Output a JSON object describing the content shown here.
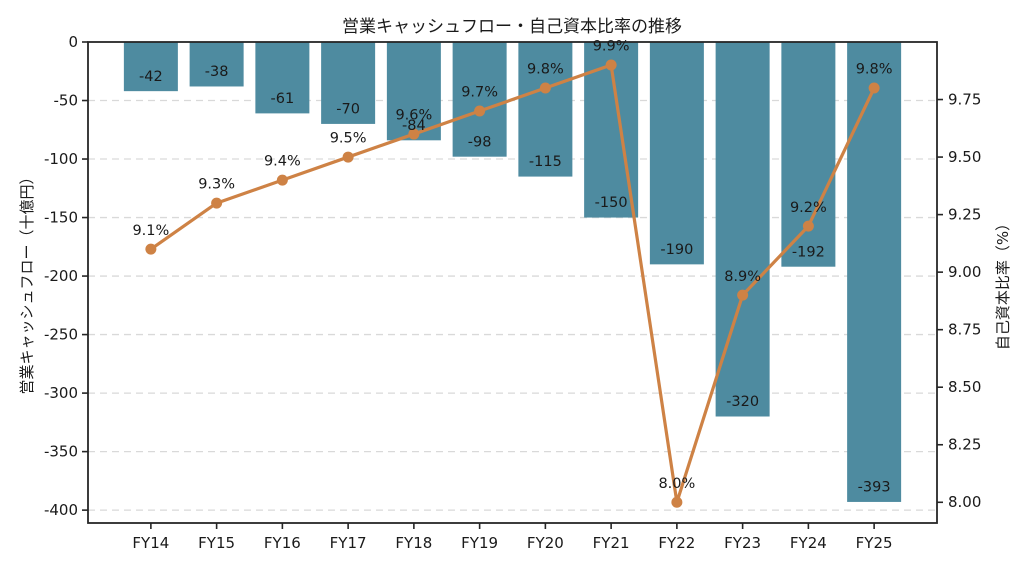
{
  "chart_data": {
    "type": "bar",
    "combo": "bar+line",
    "title": "営業キャッシュフロー・自己資本比率の推移",
    "categories": [
      "FY14",
      "FY15",
      "FY16",
      "FY17",
      "FY18",
      "FY19",
      "FY20",
      "FY21",
      "FY22",
      "FY23",
      "FY24",
      "FY25"
    ],
    "series": [
      {
        "name": "営業キャッシュフロー",
        "type": "bar",
        "values": [
          -42,
          -38,
          -61,
          -70,
          -84,
          -98,
          -115,
          -150,
          -190,
          -320,
          -192,
          -393
        ],
        "labels": [
          "-42",
          "-38",
          "-61",
          "-70",
          "-84",
          "-98",
          "-115",
          "-150",
          "-190",
          "-320",
          "-192",
          "-393"
        ],
        "color": "#4e8ba0"
      },
      {
        "name": "自己資本比率",
        "type": "line",
        "values": [
          9.1,
          9.3,
          9.4,
          9.5,
          9.6,
          9.7,
          9.8,
          9.9,
          8.0,
          8.9,
          9.2,
          9.8
        ],
        "labels": [
          "9.1%",
          "9.3%",
          "9.4%",
          "9.5%",
          "9.6%",
          "9.7%",
          "9.8%",
          "9.9%",
          "8.0%",
          "8.9%",
          "9.2%",
          "9.8%"
        ],
        "color": "#ce8245"
      }
    ],
    "left_axis": {
      "label": "営業キャッシュフロー（十億円）",
      "ticks": [
        0,
        -50,
        -100,
        -150,
        -200,
        -250,
        -300,
        -350,
        -400
      ],
      "min": -411,
      "max": 0
    },
    "right_axis": {
      "label": "自己資本比率（%）",
      "ticks": [
        8.0,
        8.25,
        8.5,
        8.75,
        9.0,
        9.25,
        9.5,
        9.75
      ],
      "min": 7.91,
      "max": 10.0
    },
    "grid": {
      "show": true,
      "style": "dashed",
      "color": "#d9d9d9"
    },
    "legend": "none",
    "colors": {
      "background": "#ffffff",
      "axis": "#262626",
      "text": "#1a1a1a"
    }
  }
}
